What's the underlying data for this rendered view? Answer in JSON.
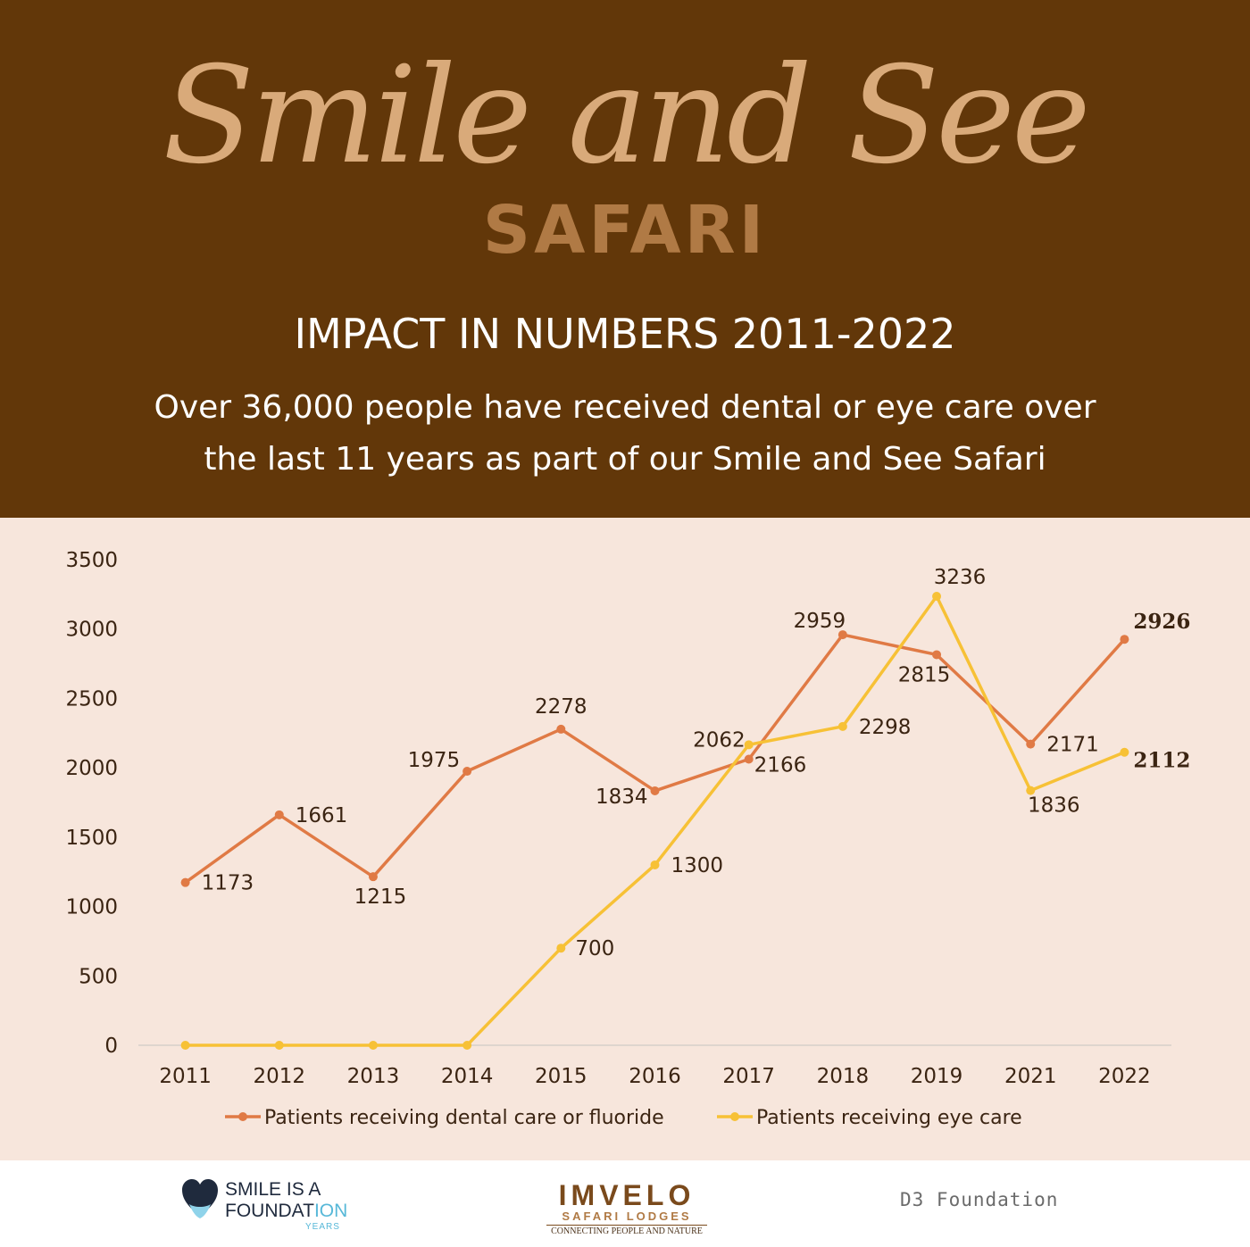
{
  "header": {
    "script_title": "Smile and See",
    "safari_title": "SAFARI",
    "impact_heading": "IMPACT IN NUMBERS 2011-2022",
    "impact_sub_line1": "Over 36,000 people have received dental or eye care over",
    "impact_sub_line2": "the last 11 years as part of our Smile and See Safari"
  },
  "chart_data": {
    "type": "line",
    "categories": [
      "2011",
      "2012",
      "2013",
      "2014",
      "2015",
      "2016",
      "2017",
      "2018",
      "2019",
      "2021",
      "2022"
    ],
    "ylim": [
      0,
      3500
    ],
    "yticks": [
      0,
      500,
      1000,
      1500,
      2000,
      2500,
      3000,
      3500
    ],
    "grid": false,
    "legend_position": "bottom",
    "series": [
      {
        "name": "Patients receiving dental care or fluoride",
        "color": "#e07a45",
        "values": [
          1173,
          1661,
          1215,
          1975,
          2278,
          1834,
          2062,
          2959,
          2815,
          2171,
          2926
        ],
        "labels": [
          "1173",
          "1661",
          "1215",
          "1975",
          "2278",
          "1834",
          "2062",
          "2959",
          "2815",
          "2171",
          "2926"
        ]
      },
      {
        "name": "Patients receiving eye care",
        "color": "#f7c136",
        "values": [
          0,
          0,
          0,
          0,
          700,
          1300,
          2166,
          2298,
          3236,
          1836,
          2112
        ],
        "labels": [
          "",
          "",
          "",
          "",
          "700",
          "1300",
          "2166",
          "2298",
          "3236",
          "1836",
          "2112"
        ]
      }
    ]
  },
  "footer": {
    "smile_line1a": "SMILE",
    "smile_line1b": " IS A",
    "smile_line2a": "FOUNDAT",
    "smile_line2b": "ION",
    "smile_years": "YEARS",
    "imvelo_name": "IMVELO",
    "imvelo_sub": "SAFARI LODGES",
    "imvelo_tag": "CONNECTING PEOPLE AND NATURE",
    "d3_name": "D3 Foundation"
  },
  "colors": {
    "header_bg": "#623709",
    "chart_bg": "#f7e6dc",
    "text_dark": "#3b2412"
  }
}
